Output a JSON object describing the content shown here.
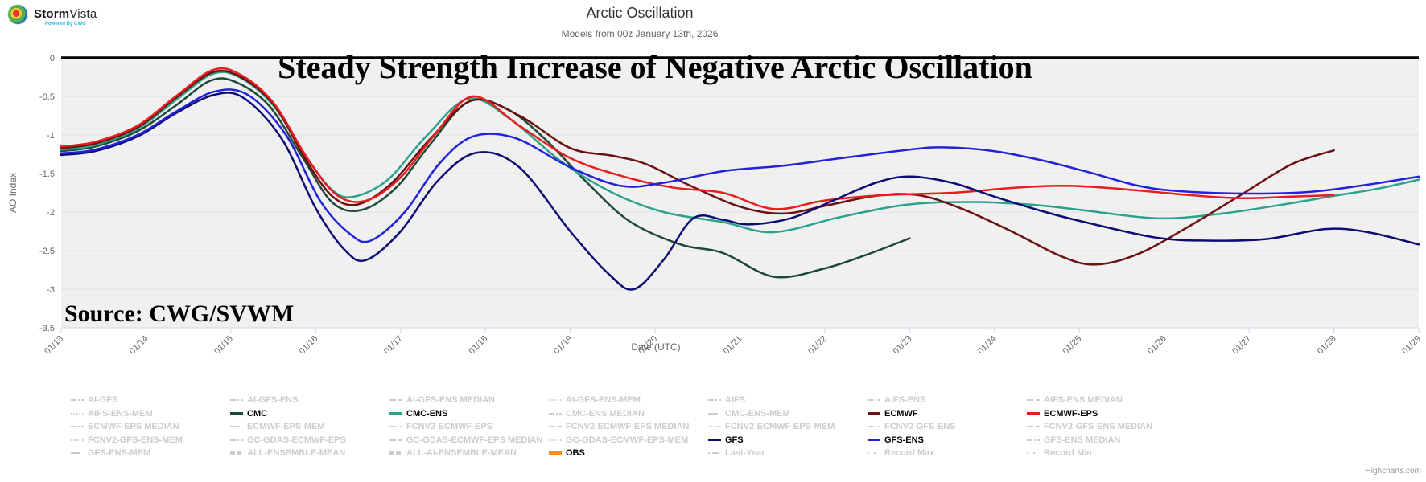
{
  "page": {
    "credit": "Highcharts.com"
  },
  "logo": {
    "brand_bold": "Storm",
    "brand_regular": "Vista",
    "tagline": "Powered By CWG"
  },
  "header": {
    "title": "Arctic Oscillation",
    "subtitle": "Models from 00z January 13th, 2026"
  },
  "annotations": {
    "headline": "Steady Strength Increase of Negative Arctic Oscillation",
    "source": "Source: CWG/SVWM"
  },
  "chart_data": {
    "type": "line",
    "title": "Arctic Oscillation",
    "xlabel": "Date (UTC)",
    "ylabel": "AO Index",
    "ylim": [
      -3.5,
      0
    ],
    "yticks": [
      0,
      -0.5,
      -1,
      -1.5,
      -2,
      -2.5,
      -3,
      -3.5
    ],
    "ytick_labels": [
      "0",
      "-0.5",
      "-1",
      "-1.5",
      "-2",
      "-2.5",
      "-3",
      "-3.5"
    ],
    "xlim_days": [
      13,
      29
    ],
    "xtick_days": [
      13,
      14,
      15,
      16,
      17,
      18,
      19,
      20,
      21,
      22,
      23,
      24,
      25,
      26,
      27,
      28,
      29
    ],
    "xtick_labels": [
      "01/13",
      "01/14",
      "01/15",
      "01/16",
      "01/17",
      "01/18",
      "01/19",
      "01/20",
      "01/21",
      "01/22",
      "01/23",
      "01/24",
      "01/25",
      "01/26",
      "01/27",
      "01/28",
      "01/29"
    ],
    "grid": "horizontal",
    "legend_position": "bottom",
    "zero_line": {
      "value": 0,
      "color": "#000000",
      "width": 3.5
    },
    "colors": {
      "plot_background": "#f0f0f0",
      "gridline": "#e0e0e0",
      "axis_line": "#ccd6eb",
      "axis_text": "#666666",
      "inactive_legend": "#cccccc"
    },
    "series": [
      {
        "name": "CMC",
        "color": "#1d4a37",
        "points": [
          [
            13,
            -1.21
          ],
          [
            13.4,
            -1.15
          ],
          [
            13.9,
            -0.95
          ],
          [
            14.35,
            -0.62
          ],
          [
            14.75,
            -0.3
          ],
          [
            15.05,
            -0.31
          ],
          [
            15.45,
            -0.62
          ],
          [
            15.85,
            -1.3
          ],
          [
            16.2,
            -1.88
          ],
          [
            16.55,
            -1.97
          ],
          [
            16.95,
            -1.68
          ],
          [
            17.35,
            -1.12
          ],
          [
            17.8,
            -0.57
          ],
          [
            18.25,
            -0.66
          ],
          [
            18.7,
            -1.05
          ],
          [
            19.2,
            -1.62
          ],
          [
            19.7,
            -2.12
          ],
          [
            20.3,
            -2.42
          ],
          [
            20.8,
            -2.53
          ],
          [
            21.4,
            -2.84
          ],
          [
            22.0,
            -2.73
          ],
          [
            22.5,
            -2.55
          ],
          [
            23.0,
            -2.34
          ]
        ]
      },
      {
        "name": "CMC-ENS",
        "color": "#2aa38a",
        "points": [
          [
            13,
            -1.19
          ],
          [
            13.4,
            -1.13
          ],
          [
            13.9,
            -0.92
          ],
          [
            14.35,
            -0.55
          ],
          [
            14.78,
            -0.21
          ],
          [
            15.1,
            -0.25
          ],
          [
            15.5,
            -0.62
          ],
          [
            15.9,
            -1.3
          ],
          [
            16.2,
            -1.72
          ],
          [
            16.45,
            -1.8
          ],
          [
            16.85,
            -1.58
          ],
          [
            17.3,
            -1.02
          ],
          [
            17.8,
            -0.53
          ],
          [
            18.3,
            -0.8
          ],
          [
            18.9,
            -1.35
          ],
          [
            19.5,
            -1.75
          ],
          [
            20.1,
            -2.0
          ],
          [
            20.8,
            -2.13
          ],
          [
            21.4,
            -2.26
          ],
          [
            22.2,
            -2.06
          ],
          [
            23.0,
            -1.9
          ],
          [
            23.8,
            -1.87
          ],
          [
            24.5,
            -1.91
          ],
          [
            25.0,
            -1.97
          ],
          [
            25.9,
            -2.08
          ],
          [
            26.6,
            -2.03
          ],
          [
            27.3,
            -1.92
          ],
          [
            28.0,
            -1.79
          ],
          [
            28.5,
            -1.7
          ],
          [
            29,
            -1.58
          ]
        ]
      },
      {
        "name": "ECMWF",
        "color": "#6b1113",
        "points": [
          [
            13,
            -1.17
          ],
          [
            13.4,
            -1.11
          ],
          [
            13.9,
            -0.9
          ],
          [
            14.35,
            -0.52
          ],
          [
            14.78,
            -0.19
          ],
          [
            15.1,
            -0.24
          ],
          [
            15.5,
            -0.6
          ],
          [
            15.9,
            -1.35
          ],
          [
            16.2,
            -1.8
          ],
          [
            16.5,
            -1.9
          ],
          [
            16.9,
            -1.62
          ],
          [
            17.35,
            -1.05
          ],
          [
            17.85,
            -0.55
          ],
          [
            18.4,
            -0.75
          ],
          [
            19.0,
            -1.17
          ],
          [
            19.5,
            -1.27
          ],
          [
            19.9,
            -1.38
          ],
          [
            20.4,
            -1.65
          ],
          [
            21.0,
            -1.93
          ],
          [
            21.5,
            -2.02
          ],
          [
            22.0,
            -1.92
          ],
          [
            22.6,
            -1.79
          ],
          [
            23.1,
            -1.78
          ],
          [
            23.6,
            -1.95
          ],
          [
            24.2,
            -2.25
          ],
          [
            24.8,
            -2.58
          ],
          [
            25.2,
            -2.68
          ],
          [
            25.7,
            -2.54
          ],
          [
            26.3,
            -2.18
          ],
          [
            26.9,
            -1.78
          ],
          [
            27.5,
            -1.38
          ],
          [
            28.0,
            -1.2
          ]
        ]
      },
      {
        "name": "ECMWF-EPS",
        "color": "#ea1c1c",
        "points": [
          [
            13,
            -1.15
          ],
          [
            13.4,
            -1.09
          ],
          [
            13.9,
            -0.88
          ],
          [
            14.35,
            -0.5
          ],
          [
            14.78,
            -0.16
          ],
          [
            15.1,
            -0.21
          ],
          [
            15.5,
            -0.58
          ],
          [
            15.9,
            -1.3
          ],
          [
            16.25,
            -1.78
          ],
          [
            16.6,
            -1.85
          ],
          [
            17.0,
            -1.55
          ],
          [
            17.4,
            -1.0
          ],
          [
            17.85,
            -0.5
          ],
          [
            18.4,
            -0.88
          ],
          [
            19.0,
            -1.3
          ],
          [
            19.6,
            -1.53
          ],
          [
            20.2,
            -1.68
          ],
          [
            20.8,
            -1.75
          ],
          [
            21.4,
            -1.96
          ],
          [
            22.0,
            -1.85
          ],
          [
            22.7,
            -1.78
          ],
          [
            23.5,
            -1.75
          ],
          [
            24.3,
            -1.68
          ],
          [
            24.9,
            -1.66
          ],
          [
            25.6,
            -1.71
          ],
          [
            26.3,
            -1.78
          ],
          [
            26.9,
            -1.82
          ],
          [
            27.5,
            -1.8
          ],
          [
            28.0,
            -1.78
          ]
        ]
      },
      {
        "name": "GFS",
        "color": "#0c0c74",
        "points": [
          [
            13,
            -1.26
          ],
          [
            13.4,
            -1.21
          ],
          [
            13.9,
            -1.02
          ],
          [
            14.35,
            -0.72
          ],
          [
            14.8,
            -0.48
          ],
          [
            15.15,
            -0.52
          ],
          [
            15.6,
            -1.05
          ],
          [
            16.0,
            -1.95
          ],
          [
            16.35,
            -2.5
          ],
          [
            16.6,
            -2.62
          ],
          [
            17.0,
            -2.25
          ],
          [
            17.45,
            -1.58
          ],
          [
            17.9,
            -1.23
          ],
          [
            18.4,
            -1.42
          ],
          [
            19.0,
            -2.25
          ],
          [
            19.45,
            -2.8
          ],
          [
            19.75,
            -3.0
          ],
          [
            20.1,
            -2.62
          ],
          [
            20.45,
            -2.08
          ],
          [
            20.8,
            -2.1
          ],
          [
            21.1,
            -2.16
          ],
          [
            21.6,
            -2.08
          ],
          [
            22.1,
            -1.85
          ],
          [
            22.6,
            -1.62
          ],
          [
            23.0,
            -1.54
          ],
          [
            23.5,
            -1.62
          ],
          [
            24.0,
            -1.8
          ],
          [
            24.6,
            -2.0
          ],
          [
            25.1,
            -2.14
          ],
          [
            25.9,
            -2.33
          ],
          [
            26.5,
            -2.37
          ],
          [
            27.2,
            -2.35
          ],
          [
            27.9,
            -2.22
          ],
          [
            28.4,
            -2.26
          ],
          [
            29,
            -2.42
          ]
        ]
      },
      {
        "name": "GFS-ENS",
        "color": "#2222dd",
        "points": [
          [
            13,
            -1.24
          ],
          [
            13.4,
            -1.19
          ],
          [
            13.9,
            -1.0
          ],
          [
            14.35,
            -0.7
          ],
          [
            14.8,
            -0.44
          ],
          [
            15.2,
            -0.48
          ],
          [
            15.65,
            -1.0
          ],
          [
            16.05,
            -1.85
          ],
          [
            16.4,
            -2.28
          ],
          [
            16.65,
            -2.37
          ],
          [
            17.05,
            -2.0
          ],
          [
            17.45,
            -1.38
          ],
          [
            17.85,
            -1.02
          ],
          [
            18.35,
            -1.04
          ],
          [
            19.0,
            -1.42
          ],
          [
            19.6,
            -1.66
          ],
          [
            20.1,
            -1.62
          ],
          [
            20.8,
            -1.47
          ],
          [
            21.5,
            -1.4
          ],
          [
            22.2,
            -1.3
          ],
          [
            23.0,
            -1.19
          ],
          [
            23.4,
            -1.16
          ],
          [
            24.0,
            -1.21
          ],
          [
            24.6,
            -1.34
          ],
          [
            25.1,
            -1.48
          ],
          [
            25.7,
            -1.66
          ],
          [
            26.2,
            -1.73
          ],
          [
            27.0,
            -1.76
          ],
          [
            27.7,
            -1.74
          ],
          [
            28.3,
            -1.66
          ],
          [
            29,
            -1.54
          ]
        ]
      }
    ]
  },
  "legend": {
    "items": [
      {
        "label": "AI-GFS",
        "style": "dashdot",
        "active": false
      },
      {
        "label": "AI-GFS-ENS",
        "style": "dashdot",
        "active": false
      },
      {
        "label": "AI-GFS-ENS MEDIAN",
        "style": "dash",
        "active": false
      },
      {
        "label": "AI-GFS-ENS-MEM",
        "style": "dot",
        "active": false
      },
      {
        "label": "AIFS",
        "style": "dashdot",
        "active": false
      },
      {
        "label": "AIFS-ENS",
        "style": "dashdot",
        "active": false
      },
      {
        "label": "AIFS-ENS MEDIAN",
        "style": "dash",
        "active": false
      },
      {
        "label": "AIFS-ENS-MEM",
        "style": "dot",
        "active": false
      },
      {
        "label": "CMC",
        "style": "solid",
        "color": "#1d4a37",
        "active": true
      },
      {
        "label": "CMC-ENS",
        "style": "solid",
        "color": "#2aa38a",
        "active": true
      },
      {
        "label": "CMC-ENS MEDIAN",
        "style": "dashdot",
        "active": false
      },
      {
        "label": "CMC-ENS-MEM",
        "style": "longdash",
        "active": false
      },
      {
        "label": "ECMWF",
        "style": "solid",
        "color": "#6b1113",
        "active": true
      },
      {
        "label": "ECMWF-EPS",
        "style": "solid",
        "color": "#ea1c1c",
        "active": true
      },
      {
        "label": "ECMWF-EPS MEDIAN",
        "style": "dashdot",
        "active": false
      },
      {
        "label": "ECMWF-EPS-MEM",
        "style": "longdash",
        "active": false
      },
      {
        "label": "FCNV2-ECMWF-EPS",
        "style": "dashdot",
        "active": false
      },
      {
        "label": "FCNV2-ECMWF-EPS MEDIAN",
        "style": "dash",
        "active": false
      },
      {
        "label": "FCNV2-ECMWF-EPS-MEM",
        "style": "dot",
        "active": false
      },
      {
        "label": "FCNV2-GFS-ENS",
        "style": "dashdot",
        "active": false
      },
      {
        "label": "FCNV2-GFS-ENS MEDIAN",
        "style": "dash",
        "active": false
      },
      {
        "label": "FCNV2-GFS-ENS-MEM",
        "style": "dot",
        "active": false
      },
      {
        "label": "GC-GDAS-ECMWF-EPS",
        "style": "dashdot",
        "active": false
      },
      {
        "label": "GC-GDAS-ECMWF-EPS MEDIAN",
        "style": "dash",
        "active": false
      },
      {
        "label": "GC-GDAS-ECMWF-EPS-MEM",
        "style": "dot",
        "active": false
      },
      {
        "label": "GFS",
        "style": "solid",
        "color": "#0c0c74",
        "active": true
      },
      {
        "label": "GFS-ENS",
        "style": "solid",
        "color": "#2222dd",
        "active": true
      },
      {
        "label": "GFS-ENS MEDIAN",
        "style": "dashdot",
        "active": false
      },
      {
        "label": "GFS-ENS-MEM",
        "style": "longdash",
        "active": false
      },
      {
        "label": "ALL-ENSEMBLE-MEAN",
        "style": "thickdash",
        "active": false
      },
      {
        "label": "ALL-AI-ENSEMBLE-MEAN",
        "style": "thickdash",
        "active": false
      },
      {
        "label": "OBS",
        "style": "thicksolid",
        "color": "#f28f22",
        "active": true
      },
      {
        "label": "Last-Year",
        "style": "dotdash",
        "active": false
      },
      {
        "label": "Record Max",
        "style": "dots2",
        "active": false
      },
      {
        "label": "Record Min",
        "style": "dots2",
        "active": false
      }
    ]
  }
}
